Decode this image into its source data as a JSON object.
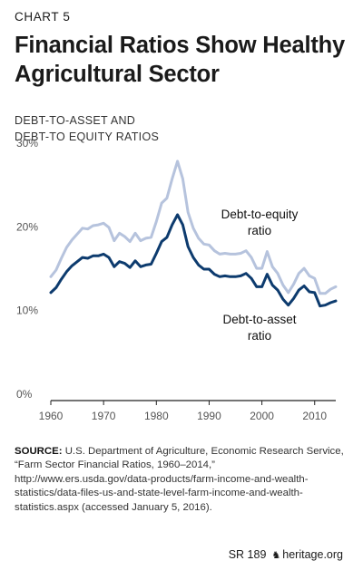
{
  "header": {
    "chart_number": "CHART 5",
    "title": "Financial Ratios Show Healthy Agricultural Sector",
    "subtitle_line1": "DEBT-TO-ASSET AND",
    "subtitle_line2": "DEBT-TO EQUITY RATIOS"
  },
  "source": {
    "label": "SOURCE:",
    "text": "U.S. Department of Agriculture, Economic Research Service, “Farm Sector Financial Ratios, 1960–2014,” http://www.ers.usda.gov/data-products/farm-income-and-wealth-statistics/data-files-us-and-state-level-farm-income-and-wealth-statistics.aspx (accessed January 5, 2016)."
  },
  "footer": {
    "report_id": "SR 189",
    "site": "heritage.org",
    "bell_icon": "liberty-bell-icon"
  },
  "colors": {
    "debt_to_asset": "#0d3b6e",
    "debt_to_equity": "#b6c3dd",
    "axis": "#222222",
    "gridline": "#d0d0d0"
  },
  "chart_data": {
    "type": "line",
    "title": "Financial Ratios Show Healthy Agricultural Sector",
    "subtitle": "DEBT-TO-ASSET AND DEBT-TO EQUITY RATIOS",
    "xlabel": "",
    "ylabel": "",
    "xlim": [
      1960,
      2014
    ],
    "ylim": [
      0,
      30
    ],
    "x_ticks": [
      1960,
      1970,
      1980,
      1990,
      2000,
      2010
    ],
    "y_ticks": [
      0,
      10,
      20,
      30
    ],
    "y_tick_labels": [
      "0%",
      "10%",
      "20%",
      "30%"
    ],
    "grid": false,
    "legend": "direct labels on lines",
    "x": [
      1960,
      1961,
      1962,
      1963,
      1964,
      1965,
      1966,
      1967,
      1968,
      1969,
      1970,
      1971,
      1972,
      1973,
      1974,
      1975,
      1976,
      1977,
      1978,
      1979,
      1980,
      1981,
      1982,
      1983,
      1984,
      1985,
      1986,
      1987,
      1988,
      1989,
      1990,
      1991,
      1992,
      1993,
      1994,
      1995,
      1996,
      1997,
      1998,
      1999,
      2000,
      2001,
      2002,
      2003,
      2004,
      2005,
      2006,
      2007,
      2008,
      2009,
      2010,
      2011,
      2012,
      2013,
      2014
    ],
    "series": [
      {
        "name": "Debt-to-equity ratio",
        "label_line1": "Debt-to-equity",
        "label_line2": "ratio",
        "values": [
          14.8,
          15.6,
          17.0,
          18.3,
          19.2,
          19.9,
          20.6,
          20.5,
          20.9,
          21.0,
          21.2,
          20.7,
          19.1,
          20.0,
          19.6,
          19.0,
          20.0,
          19.1,
          19.4,
          19.5,
          21.4,
          23.6,
          24.2,
          26.5,
          28.6,
          26.5,
          22.5,
          20.6,
          19.4,
          18.7,
          18.6,
          17.9,
          17.5,
          17.6,
          17.5,
          17.5,
          17.6,
          17.9,
          17.1,
          15.8,
          15.8,
          17.8,
          16.0,
          15.2,
          13.8,
          12.9,
          13.9,
          15.2,
          15.8,
          14.9,
          14.6,
          12.8,
          12.8,
          13.3,
          13.6
        ]
      },
      {
        "name": "Debt-to-asset ratio",
        "label_line1": "Debt-to-asset",
        "label_line2": "ratio",
        "values": [
          12.9,
          13.5,
          14.5,
          15.4,
          16.1,
          16.6,
          17.1,
          17.0,
          17.3,
          17.3,
          17.5,
          17.1,
          16.0,
          16.6,
          16.4,
          15.9,
          16.7,
          16.0,
          16.2,
          16.3,
          17.6,
          19.0,
          19.5,
          21.0,
          22.2,
          21.0,
          18.4,
          17.1,
          16.2,
          15.7,
          15.7,
          15.1,
          14.8,
          14.9,
          14.8,
          14.8,
          14.9,
          15.2,
          14.6,
          13.6,
          13.6,
          15.1,
          13.8,
          13.2,
          12.1,
          11.4,
          12.2,
          13.2,
          13.7,
          13.0,
          12.9,
          11.3,
          11.4,
          11.7,
          11.9
        ]
      }
    ]
  }
}
